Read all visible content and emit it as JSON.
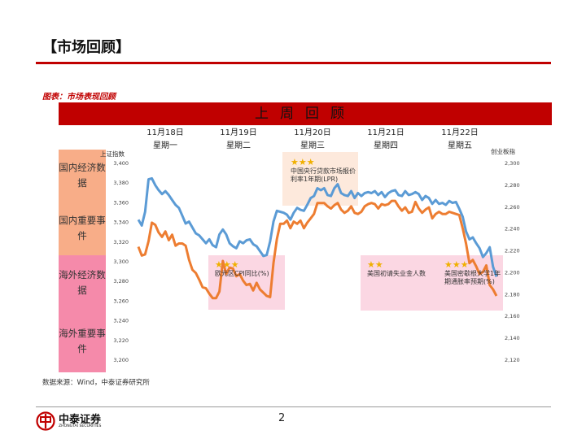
{
  "header": {
    "title": "【市场回顾】",
    "figure_label": "图表：市场表现回顾"
  },
  "banner": {
    "text": "上周回顾"
  },
  "days": [
    {
      "date": "11月18日",
      "weekday": "星期一"
    },
    {
      "date": "11月19日",
      "weekday": "星期二"
    },
    {
      "date": "11月20日",
      "weekday": "星期三"
    },
    {
      "date": "11月21日",
      "weekday": "星期四"
    },
    {
      "date": "11月22日",
      "weekday": "星期五"
    }
  ],
  "categories": [
    {
      "label": "国内经济数据",
      "color": "#f8ad88"
    },
    {
      "label": "国内重要事件",
      "color": "#f8ad88"
    },
    {
      "label": "海外经济数据",
      "color": "#f58aaa"
    },
    {
      "label": "海外重要事件",
      "color": "#f58aaa"
    }
  ],
  "events": [
    {
      "stars": "★★★",
      "text": "中国央行贷款市场报价利率1年期(LPR)",
      "color": "#fde9dc"
    },
    {
      "stars": "★★★",
      "text": "欧元区CPI同比(%)",
      "color": "#fbd7e3"
    },
    {
      "stars": "★★",
      "text": "美国初请失业金人数",
      "color": "#fbd7e3"
    },
    {
      "stars": "★★★",
      "text": "美国密歇根大学1年期通胀率预期(%)",
      "color": "#fbd7e3"
    }
  ],
  "footer": {
    "source": "数据来源：Wind，中泰证券研究所",
    "page_number": "2",
    "logo_text": "中泰证券",
    "logo_subtext": "ZHONGTAI SECURITIES"
  },
  "colors": {
    "accent": "#c00000",
    "left_series": "#5b9bd5",
    "right_series": "#ed7d31"
  },
  "chart_data": {
    "type": "line",
    "left_axis": {
      "label": "上证指数",
      "range": [
        3200,
        3400
      ],
      "ticks": [
        "3,200",
        "3,220",
        "3,240",
        "3,260",
        "3,280",
        "3,300",
        "3,320",
        "3,340",
        "3,360",
        "3,380",
        "3,400"
      ]
    },
    "right_axis": {
      "label": "创业板指",
      "range": [
        2120,
        2300
      ],
      "ticks": [
        "2,120",
        "2,140",
        "2,160",
        "2,180",
        "2,200",
        "2,220",
        "2,240",
        "2,260",
        "2,280",
        "2,300"
      ]
    },
    "grid": false,
    "series": [
      {
        "axis": "left",
        "color": "#5b9bd5",
        "values": [
          3342,
          3336,
          3350,
          3383,
          3384,
          3377,
          3372,
          3368,
          3371,
          3367,
          3362,
          3357,
          3354,
          3346,
          3338,
          3340,
          3334,
          3328,
          3326,
          3322,
          3318,
          3322,
          3316,
          3314,
          3327,
          3332,
          3327,
          3318,
          3315,
          3313,
          3320,
          3318,
          3321,
          3322,
          3317,
          3315,
          3310,
          3305,
          3306,
          3320,
          3340,
          3351,
          3350,
          3349,
          3347,
          3342,
          3349,
          3354,
          3352,
          3351,
          3357,
          3364,
          3366,
          3374,
          3372,
          3374,
          3367,
          3366,
          3374,
          3378,
          3369,
          3367,
          3366,
          3371,
          3364,
          3369,
          3366,
          3369,
          3370,
          3369,
          3371,
          3367,
          3370,
          3365,
          3369,
          3371,
          3372,
          3367,
          3366,
          3371,
          3367,
          3368,
          3370,
          3368,
          3362,
          3366,
          3364,
          3358,
          3362,
          3358,
          3359,
          3357,
          3361,
          3359,
          3360,
          3353,
          3345,
          3330,
          3322,
          3324,
          3318,
          3313,
          3304,
          3308,
          3314,
          3294,
          3284
        ]
      },
      {
        "axis": "right",
        "color": "#ed7d31",
        "values": [
          2223,
          2215,
          2216,
          2228,
          2245,
          2243,
          2236,
          2232,
          2237,
          2229,
          2234,
          2224,
          2226,
          2226,
          2224,
          2211,
          2202,
          2199,
          2193,
          2186,
          2185,
          2180,
          2176,
          2176,
          2182,
          2210,
          2198,
          2204,
          2203,
          2196,
          2198,
          2192,
          2188,
          2189,
          2183,
          2190,
          2184,
          2181,
          2178,
          2177,
          2208,
          2230,
          2244,
          2244,
          2247,
          2240,
          2246,
          2244,
          2247,
          2240,
          2245,
          2249,
          2253,
          2263,
          2263,
          2263,
          2260,
          2258,
          2261,
          2263,
          2257,
          2254,
          2256,
          2260,
          2254,
          2253,
          2255,
          2260,
          2262,
          2263,
          2262,
          2258,
          2262,
          2261,
          2262,
          2265,
          2265,
          2260,
          2256,
          2259,
          2254,
          2255,
          2264,
          2258,
          2254,
          2257,
          2259,
          2249,
          2253,
          2255,
          2253,
          2253,
          2255,
          2254,
          2253,
          2252,
          2240,
          2226,
          2208,
          2211,
          2205,
          2198,
          2200,
          2206,
          2188,
          2184,
          2178
        ]
      }
    ]
  }
}
